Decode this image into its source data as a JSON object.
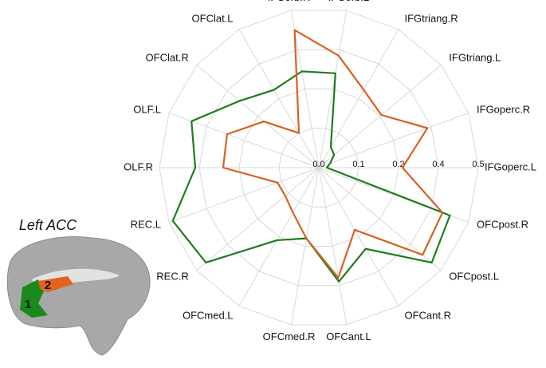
{
  "chart_data": {
    "type": "radar",
    "categories": [
      "IFGorb.L",
      "IFGtriang.R",
      "IFGtriang.L",
      "IFGoperc.R",
      "IFGoperc.L",
      "OFCpost.R",
      "OFCpost.L",
      "OFCant.R",
      "OFCant.L",
      "OFCmed.R",
      "OFCmed.L",
      "REC.R",
      "REC.L",
      "OLF.R",
      "OLF.L",
      "OFClat.R",
      "OFClat.L",
      "IFGorb.R"
    ],
    "series": [
      {
        "color": "#1e7d1e",
        "values": [
          0.28,
          0.06,
          0.05,
          0.03,
          0.02,
          0.45,
          0.47,
          0.27,
          0.38,
          0.18,
          0.22,
          0.47,
          0.49,
          0.41,
          0.44,
          0.32,
          0.25,
          0.29
        ]
      },
      {
        "color": "#d9601f",
        "values": [
          0.37,
          0.25,
          0.21,
          0.38,
          0.22,
          0.43,
          0.44,
          0.18,
          0.36,
          0.18,
          0.13,
          0.11,
          0.11,
          0.28,
          0.29,
          0.18,
          0.1,
          0.45
        ]
      }
    ],
    "rlim": [
      0,
      0.5
    ],
    "rticks": [
      {
        "value": 0,
        "label": "0.0"
      },
      0.1,
      0.2,
      0.4,
      0.5
    ],
    "grid": true
  },
  "inset": {
    "title": "Left ACC",
    "labels": [
      "1",
      "2"
    ]
  }
}
